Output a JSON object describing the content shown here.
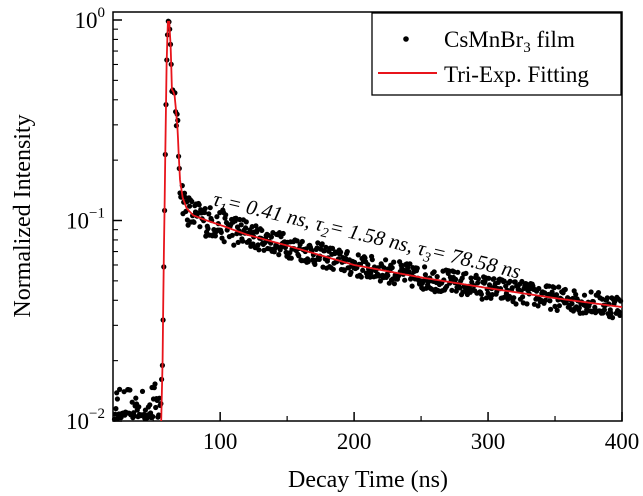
{
  "chart_data": {
    "type": "scatter",
    "xlabel": "Decay Time (ns)",
    "ylabel": "Normalized Intensity",
    "xlim": [
      20,
      400
    ],
    "ylim": [
      0.01,
      1.05
    ],
    "y_scale": "log",
    "grid": false,
    "legend_position": "top-right",
    "x_ticks": [
      {
        "value": 100,
        "label": "100"
      },
      {
        "value": 200,
        "label": "200"
      },
      {
        "value": 300,
        "label": "300"
      },
      {
        "value": 400,
        "label": "400"
      }
    ],
    "y_ticks": [
      {
        "value": 0.01,
        "base": "10",
        "exp": "−2"
      },
      {
        "value": 0.1,
        "base": "10",
        "exp": "−1"
      },
      {
        "value": 1,
        "base": "10",
        "exp": "0"
      }
    ],
    "legend": {
      "measured": {
        "pre": "CsMnBr",
        "sub": "3",
        "post": " film"
      },
      "fit": "Tri-Exp. Fitting"
    },
    "annotation": {
      "t1_sub": "1",
      "t1_val": "= 0.41 ns, ",
      "t2_sub": "2",
      "t2_val": "= 1.58 ns, ",
      "t3_sub": "3",
      "t3_val": "= 78.58 ns"
    },
    "colors": {
      "data": "#000000",
      "fit": "#e8141b"
    },
    "series": [
      {
        "role": "measured",
        "style": "scatter",
        "x": [
          20,
          25,
          30,
          35,
          40,
          45,
          50,
          55,
          57,
          59,
          60,
          61,
          62,
          63,
          64,
          66,
          68,
          70,
          72,
          75,
          80,
          90,
          100,
          120,
          150,
          200,
          250,
          300,
          350,
          400
        ],
        "y": [
          0.011,
          0.011,
          0.011,
          0.012,
          0.011,
          0.011,
          0.012,
          0.011,
          0.02,
          0.2,
          0.6,
          0.98,
          0.98,
          0.75,
          0.45,
          0.42,
          0.3,
          0.16,
          0.13,
          0.115,
          0.106,
          0.1,
          0.095,
          0.085,
          0.075,
          0.06,
          0.052,
          0.046,
          0.041,
          0.037
        ]
      },
      {
        "role": "fit",
        "style": "line",
        "x": [
          56,
          57,
          58,
          59,
          60,
          61,
          62,
          63,
          64,
          65,
          66,
          68,
          70,
          72,
          75,
          80,
          90,
          100,
          120,
          150,
          200,
          250,
          300,
          350,
          400
        ],
        "y": [
          0.01,
          0.02,
          0.07,
          0.2,
          0.6,
          0.98,
          0.98,
          0.75,
          0.45,
          0.44,
          0.42,
          0.3,
          0.16,
          0.13,
          0.115,
          0.106,
          0.1,
          0.095,
          0.085,
          0.075,
          0.06,
          0.052,
          0.046,
          0.041,
          0.037
        ]
      }
    ]
  }
}
